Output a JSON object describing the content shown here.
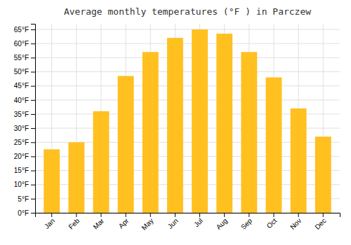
{
  "chart_data": {
    "type": "bar",
    "title": "Average monthly temperatures (°F ) in Parczew",
    "categories": [
      "Jan",
      "Feb",
      "Mar",
      "Apr",
      "May",
      "Jun",
      "Jul",
      "Aug",
      "Sep",
      "Oct",
      "Nov",
      "Dec"
    ],
    "values": [
      22.5,
      25.0,
      36.0,
      48.5,
      57.0,
      62.0,
      65.0,
      63.5,
      57.0,
      48.0,
      37.0,
      27.0
    ],
    "color": "#FFC020",
    "ylim": [
      0,
      67
    ],
    "yticks": [
      {
        "value": 0,
        "label": "0°F"
      },
      {
        "value": 5,
        "label": "5°F"
      },
      {
        "value": 10,
        "label": "10°F"
      },
      {
        "value": 15,
        "label": "15°F"
      },
      {
        "value": 20,
        "label": "20°F"
      },
      {
        "value": 25,
        "label": "25°F"
      },
      {
        "value": 30,
        "label": "30°F"
      },
      {
        "value": 35,
        "label": "35°F"
      },
      {
        "value": 40,
        "label": "40°F"
      },
      {
        "value": 45,
        "label": "45°F"
      },
      {
        "value": 50,
        "label": "50°F"
      },
      {
        "value": 55,
        "label": "55°F"
      },
      {
        "value": 60,
        "label": "60°F"
      },
      {
        "value": 65,
        "label": "65°F"
      }
    ],
    "grid": true
  }
}
